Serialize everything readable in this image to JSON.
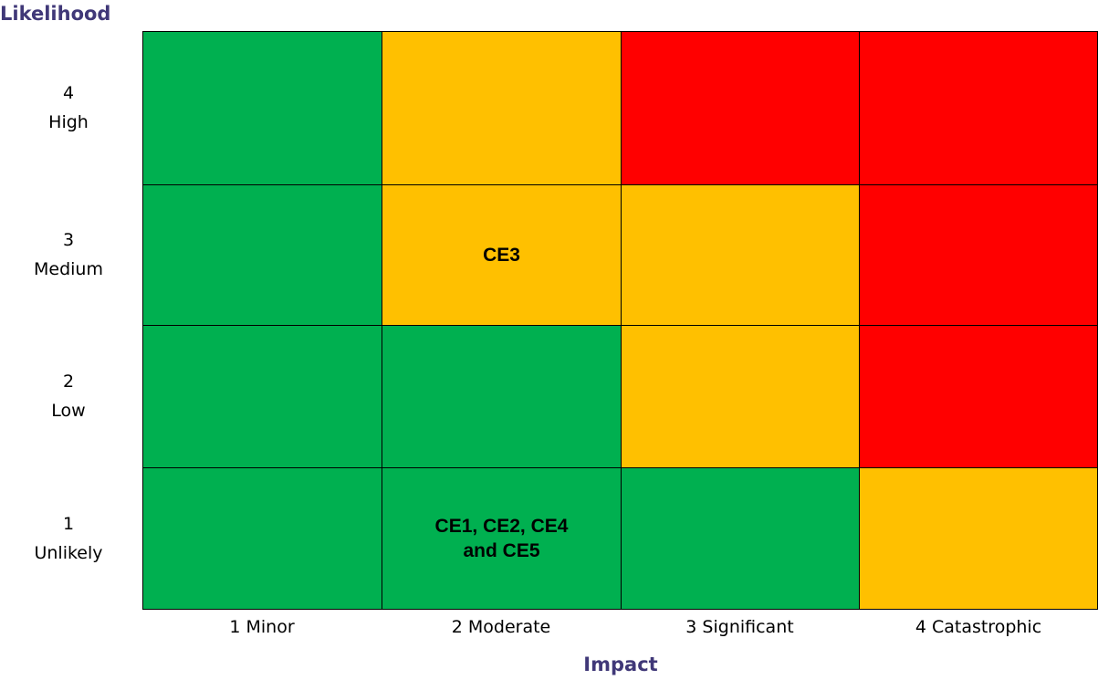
{
  "y_axis_title": "Likelihood",
  "x_axis_title": "Impact",
  "columns": [
    "1 Minor",
    "2 Moderate",
    "3 Significant",
    "4 Catastrophic"
  ],
  "rows": [
    {
      "number": "4",
      "name": "High",
      "cells": [
        {
          "color": "#00b050"
        },
        {
          "color": "#ffc000"
        },
        {
          "color": "#ff0000"
        },
        {
          "color": "#ff0000"
        }
      ]
    },
    {
      "number": "3",
      "name": "Medium",
      "cells": [
        {
          "color": "#00b050"
        },
        {
          "color": "#ffc000",
          "text": [
            "CE3"
          ]
        },
        {
          "color": "#ffc000"
        },
        {
          "color": "#ff0000"
        }
      ]
    },
    {
      "number": "2",
      "name": "Low",
      "cells": [
        {
          "color": "#00b050"
        },
        {
          "color": "#00b050"
        },
        {
          "color": "#ffc000"
        },
        {
          "color": "#ff0000"
        }
      ]
    },
    {
      "number": "1",
      "name": "Unlikely",
      "cells": [
        {
          "color": "#00b050"
        },
        {
          "color": "#00b050",
          "text": [
            "CE1, CE2, CE4",
            "and CE5"
          ]
        },
        {
          "color": "#00b050"
        },
        {
          "color": "#ffc000"
        }
      ]
    }
  ]
}
